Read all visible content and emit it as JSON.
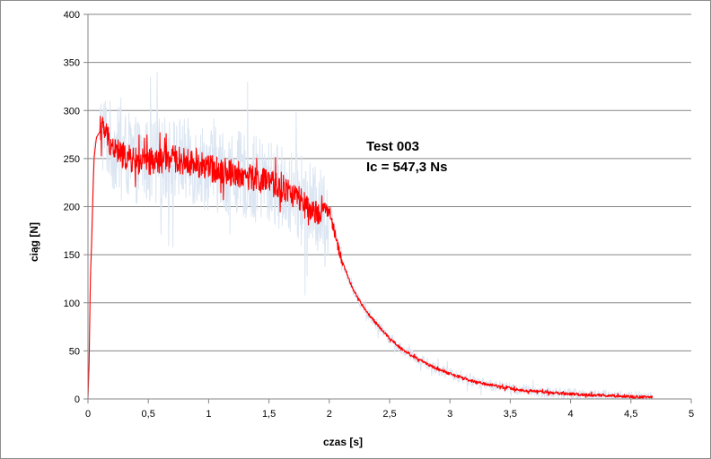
{
  "chart_data": {
    "type": "line",
    "title": "",
    "xlabel": "czas [s]",
    "ylabel": "ciąg [N]",
    "xlim": [
      0,
      5
    ],
    "ylim": [
      0,
      400
    ],
    "x_ticks": [
      0,
      0.5,
      1,
      1.5,
      2,
      2.5,
      3,
      3.5,
      4,
      4.5,
      5
    ],
    "x_tick_labels": [
      "0",
      "0,5",
      "1",
      "1,5",
      "2",
      "2,5",
      "3",
      "3,5",
      "4",
      "4,5",
      "5"
    ],
    "y_ticks": [
      0,
      50,
      100,
      150,
      200,
      250,
      300,
      350,
      400
    ],
    "y_tick_labels": [
      "0",
      "50",
      "100",
      "150",
      "200",
      "250",
      "300",
      "350",
      "400"
    ],
    "grid": "horizontal",
    "legend": "none",
    "annotations": [
      "Test 003",
      "Ic = 547,3 Ns"
    ],
    "series": [
      {
        "role": "raw signal",
        "color": "#dce6f2",
        "x": [
          0.0,
          0.02,
          0.05,
          0.1,
          0.15,
          0.2,
          0.3,
          0.4,
          0.5,
          0.6,
          0.7,
          0.8,
          0.9,
          1.0,
          1.1,
          1.2,
          1.3,
          1.4,
          1.5,
          1.6,
          1.7,
          1.8,
          1.9,
          2.0,
          2.05,
          2.1,
          2.2,
          2.3,
          2.4,
          2.5,
          2.6,
          2.7,
          2.8,
          2.9,
          3.0,
          3.2,
          3.4,
          3.6,
          3.8,
          4.0,
          4.2,
          4.4,
          4.6,
          4.68
        ],
        "y": [
          0,
          130,
          265,
          280,
          275,
          262,
          255,
          248,
          246,
          248,
          250,
          248,
          245,
          240,
          238,
          235,
          232,
          228,
          225,
          220,
          212,
          205,
          195,
          195,
          175,
          145,
          113,
          92,
          77,
          63,
          52,
          44,
          37,
          31,
          26,
          18,
          13,
          9,
          7,
          5,
          4,
          3,
          2,
          2
        ],
        "noise_band": [
          [
            0.1,
            2.0,
            45
          ],
          [
            2.0,
            4.68,
            6
          ]
        ]
      },
      {
        "role": "filtered signal",
        "color": "#ff0000",
        "x": [
          0.0,
          0.01,
          0.02,
          0.03,
          0.05,
          0.07,
          0.1,
          0.12,
          0.15,
          0.2,
          0.25,
          0.3,
          0.4,
          0.5,
          0.6,
          0.7,
          0.8,
          0.9,
          1.0,
          1.1,
          1.2,
          1.3,
          1.4,
          1.5,
          1.6,
          1.7,
          1.75,
          1.8,
          1.85,
          1.9,
          1.95,
          2.0,
          2.05,
          2.1,
          2.2,
          2.3,
          2.4,
          2.5,
          2.6,
          2.7,
          2.8,
          2.9,
          3.0,
          3.2,
          3.4,
          3.6,
          3.8,
          4.0,
          4.2,
          4.4,
          4.6,
          4.68
        ],
        "y": [
          0,
          40,
          125,
          160,
          250,
          272,
          278,
          282,
          276,
          262,
          257,
          252,
          247,
          246,
          248,
          250,
          247,
          244,
          240,
          238,
          235,
          232,
          228,
          225,
          219,
          213,
          208,
          200,
          190,
          195,
          200,
          193,
          170,
          145,
          113,
          92,
          77,
          63,
          52,
          44,
          37,
          31,
          26,
          18,
          13,
          9,
          7,
          5,
          4,
          3,
          2,
          2
        ],
        "noise_band": [
          [
            0.1,
            1.95,
            14
          ],
          [
            1.95,
            2.1,
            6
          ],
          [
            2.1,
            4.68,
            1.5
          ]
        ]
      }
    ]
  }
}
